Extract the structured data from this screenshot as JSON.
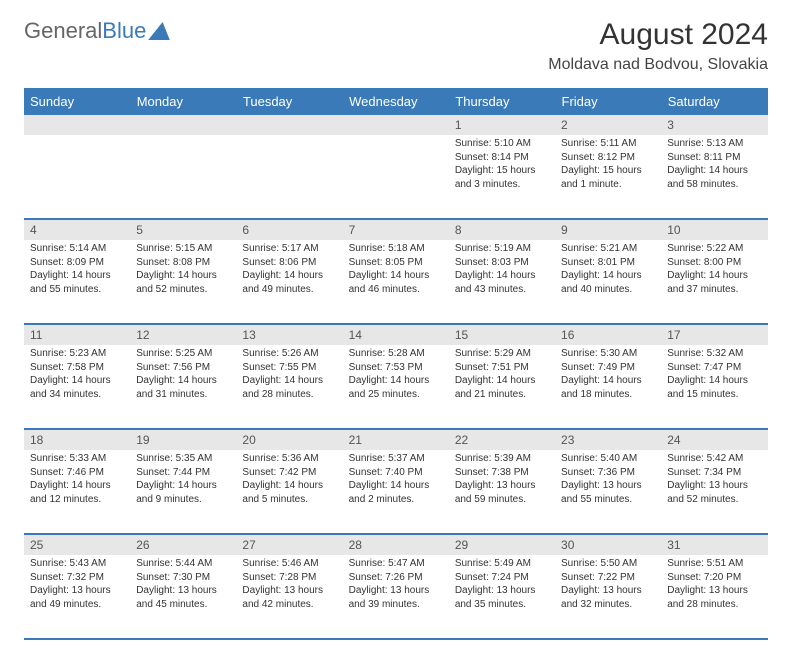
{
  "logo": {
    "general": "General",
    "blue": "Blue"
  },
  "title": "August 2024",
  "location": "Moldava nad Bodvou, Slovakia",
  "colors": {
    "header_bg": "#3a7ab8",
    "header_text": "#ffffff",
    "daynum_bg": "#e7e7e7",
    "text": "#333333"
  },
  "day_headers": [
    "Sunday",
    "Monday",
    "Tuesday",
    "Wednesday",
    "Thursday",
    "Friday",
    "Saturday"
  ],
  "weeks": [
    {
      "nums": [
        "",
        "",
        "",
        "",
        "1",
        "2",
        "3"
      ],
      "cells": [
        null,
        null,
        null,
        null,
        {
          "sunrise": "Sunrise: 5:10 AM",
          "sunset": "Sunset: 8:14 PM",
          "daylight1": "Daylight: 15 hours",
          "daylight2": "and 3 minutes."
        },
        {
          "sunrise": "Sunrise: 5:11 AM",
          "sunset": "Sunset: 8:12 PM",
          "daylight1": "Daylight: 15 hours",
          "daylight2": "and 1 minute."
        },
        {
          "sunrise": "Sunrise: 5:13 AM",
          "sunset": "Sunset: 8:11 PM",
          "daylight1": "Daylight: 14 hours",
          "daylight2": "and 58 minutes."
        }
      ]
    },
    {
      "nums": [
        "4",
        "5",
        "6",
        "7",
        "8",
        "9",
        "10"
      ],
      "cells": [
        {
          "sunrise": "Sunrise: 5:14 AM",
          "sunset": "Sunset: 8:09 PM",
          "daylight1": "Daylight: 14 hours",
          "daylight2": "and 55 minutes."
        },
        {
          "sunrise": "Sunrise: 5:15 AM",
          "sunset": "Sunset: 8:08 PM",
          "daylight1": "Daylight: 14 hours",
          "daylight2": "and 52 minutes."
        },
        {
          "sunrise": "Sunrise: 5:17 AM",
          "sunset": "Sunset: 8:06 PM",
          "daylight1": "Daylight: 14 hours",
          "daylight2": "and 49 minutes."
        },
        {
          "sunrise": "Sunrise: 5:18 AM",
          "sunset": "Sunset: 8:05 PM",
          "daylight1": "Daylight: 14 hours",
          "daylight2": "and 46 minutes."
        },
        {
          "sunrise": "Sunrise: 5:19 AM",
          "sunset": "Sunset: 8:03 PM",
          "daylight1": "Daylight: 14 hours",
          "daylight2": "and 43 minutes."
        },
        {
          "sunrise": "Sunrise: 5:21 AM",
          "sunset": "Sunset: 8:01 PM",
          "daylight1": "Daylight: 14 hours",
          "daylight2": "and 40 minutes."
        },
        {
          "sunrise": "Sunrise: 5:22 AM",
          "sunset": "Sunset: 8:00 PM",
          "daylight1": "Daylight: 14 hours",
          "daylight2": "and 37 minutes."
        }
      ]
    },
    {
      "nums": [
        "11",
        "12",
        "13",
        "14",
        "15",
        "16",
        "17"
      ],
      "cells": [
        {
          "sunrise": "Sunrise: 5:23 AM",
          "sunset": "Sunset: 7:58 PM",
          "daylight1": "Daylight: 14 hours",
          "daylight2": "and 34 minutes."
        },
        {
          "sunrise": "Sunrise: 5:25 AM",
          "sunset": "Sunset: 7:56 PM",
          "daylight1": "Daylight: 14 hours",
          "daylight2": "and 31 minutes."
        },
        {
          "sunrise": "Sunrise: 5:26 AM",
          "sunset": "Sunset: 7:55 PM",
          "daylight1": "Daylight: 14 hours",
          "daylight2": "and 28 minutes."
        },
        {
          "sunrise": "Sunrise: 5:28 AM",
          "sunset": "Sunset: 7:53 PM",
          "daylight1": "Daylight: 14 hours",
          "daylight2": "and 25 minutes."
        },
        {
          "sunrise": "Sunrise: 5:29 AM",
          "sunset": "Sunset: 7:51 PM",
          "daylight1": "Daylight: 14 hours",
          "daylight2": "and 21 minutes."
        },
        {
          "sunrise": "Sunrise: 5:30 AM",
          "sunset": "Sunset: 7:49 PM",
          "daylight1": "Daylight: 14 hours",
          "daylight2": "and 18 minutes."
        },
        {
          "sunrise": "Sunrise: 5:32 AM",
          "sunset": "Sunset: 7:47 PM",
          "daylight1": "Daylight: 14 hours",
          "daylight2": "and 15 minutes."
        }
      ]
    },
    {
      "nums": [
        "18",
        "19",
        "20",
        "21",
        "22",
        "23",
        "24"
      ],
      "cells": [
        {
          "sunrise": "Sunrise: 5:33 AM",
          "sunset": "Sunset: 7:46 PM",
          "daylight1": "Daylight: 14 hours",
          "daylight2": "and 12 minutes."
        },
        {
          "sunrise": "Sunrise: 5:35 AM",
          "sunset": "Sunset: 7:44 PM",
          "daylight1": "Daylight: 14 hours",
          "daylight2": "and 9 minutes."
        },
        {
          "sunrise": "Sunrise: 5:36 AM",
          "sunset": "Sunset: 7:42 PM",
          "daylight1": "Daylight: 14 hours",
          "daylight2": "and 5 minutes."
        },
        {
          "sunrise": "Sunrise: 5:37 AM",
          "sunset": "Sunset: 7:40 PM",
          "daylight1": "Daylight: 14 hours",
          "daylight2": "and 2 minutes."
        },
        {
          "sunrise": "Sunrise: 5:39 AM",
          "sunset": "Sunset: 7:38 PM",
          "daylight1": "Daylight: 13 hours",
          "daylight2": "and 59 minutes."
        },
        {
          "sunrise": "Sunrise: 5:40 AM",
          "sunset": "Sunset: 7:36 PM",
          "daylight1": "Daylight: 13 hours",
          "daylight2": "and 55 minutes."
        },
        {
          "sunrise": "Sunrise: 5:42 AM",
          "sunset": "Sunset: 7:34 PM",
          "daylight1": "Daylight: 13 hours",
          "daylight2": "and 52 minutes."
        }
      ]
    },
    {
      "nums": [
        "25",
        "26",
        "27",
        "28",
        "29",
        "30",
        "31"
      ],
      "cells": [
        {
          "sunrise": "Sunrise: 5:43 AM",
          "sunset": "Sunset: 7:32 PM",
          "daylight1": "Daylight: 13 hours",
          "daylight2": "and 49 minutes."
        },
        {
          "sunrise": "Sunrise: 5:44 AM",
          "sunset": "Sunset: 7:30 PM",
          "daylight1": "Daylight: 13 hours",
          "daylight2": "and 45 minutes."
        },
        {
          "sunrise": "Sunrise: 5:46 AM",
          "sunset": "Sunset: 7:28 PM",
          "daylight1": "Daylight: 13 hours",
          "daylight2": "and 42 minutes."
        },
        {
          "sunrise": "Sunrise: 5:47 AM",
          "sunset": "Sunset: 7:26 PM",
          "daylight1": "Daylight: 13 hours",
          "daylight2": "and 39 minutes."
        },
        {
          "sunrise": "Sunrise: 5:49 AM",
          "sunset": "Sunset: 7:24 PM",
          "daylight1": "Daylight: 13 hours",
          "daylight2": "and 35 minutes."
        },
        {
          "sunrise": "Sunrise: 5:50 AM",
          "sunset": "Sunset: 7:22 PM",
          "daylight1": "Daylight: 13 hours",
          "daylight2": "and 32 minutes."
        },
        {
          "sunrise": "Sunrise: 5:51 AM",
          "sunset": "Sunset: 7:20 PM",
          "daylight1": "Daylight: 13 hours",
          "daylight2": "and 28 minutes."
        }
      ]
    }
  ]
}
